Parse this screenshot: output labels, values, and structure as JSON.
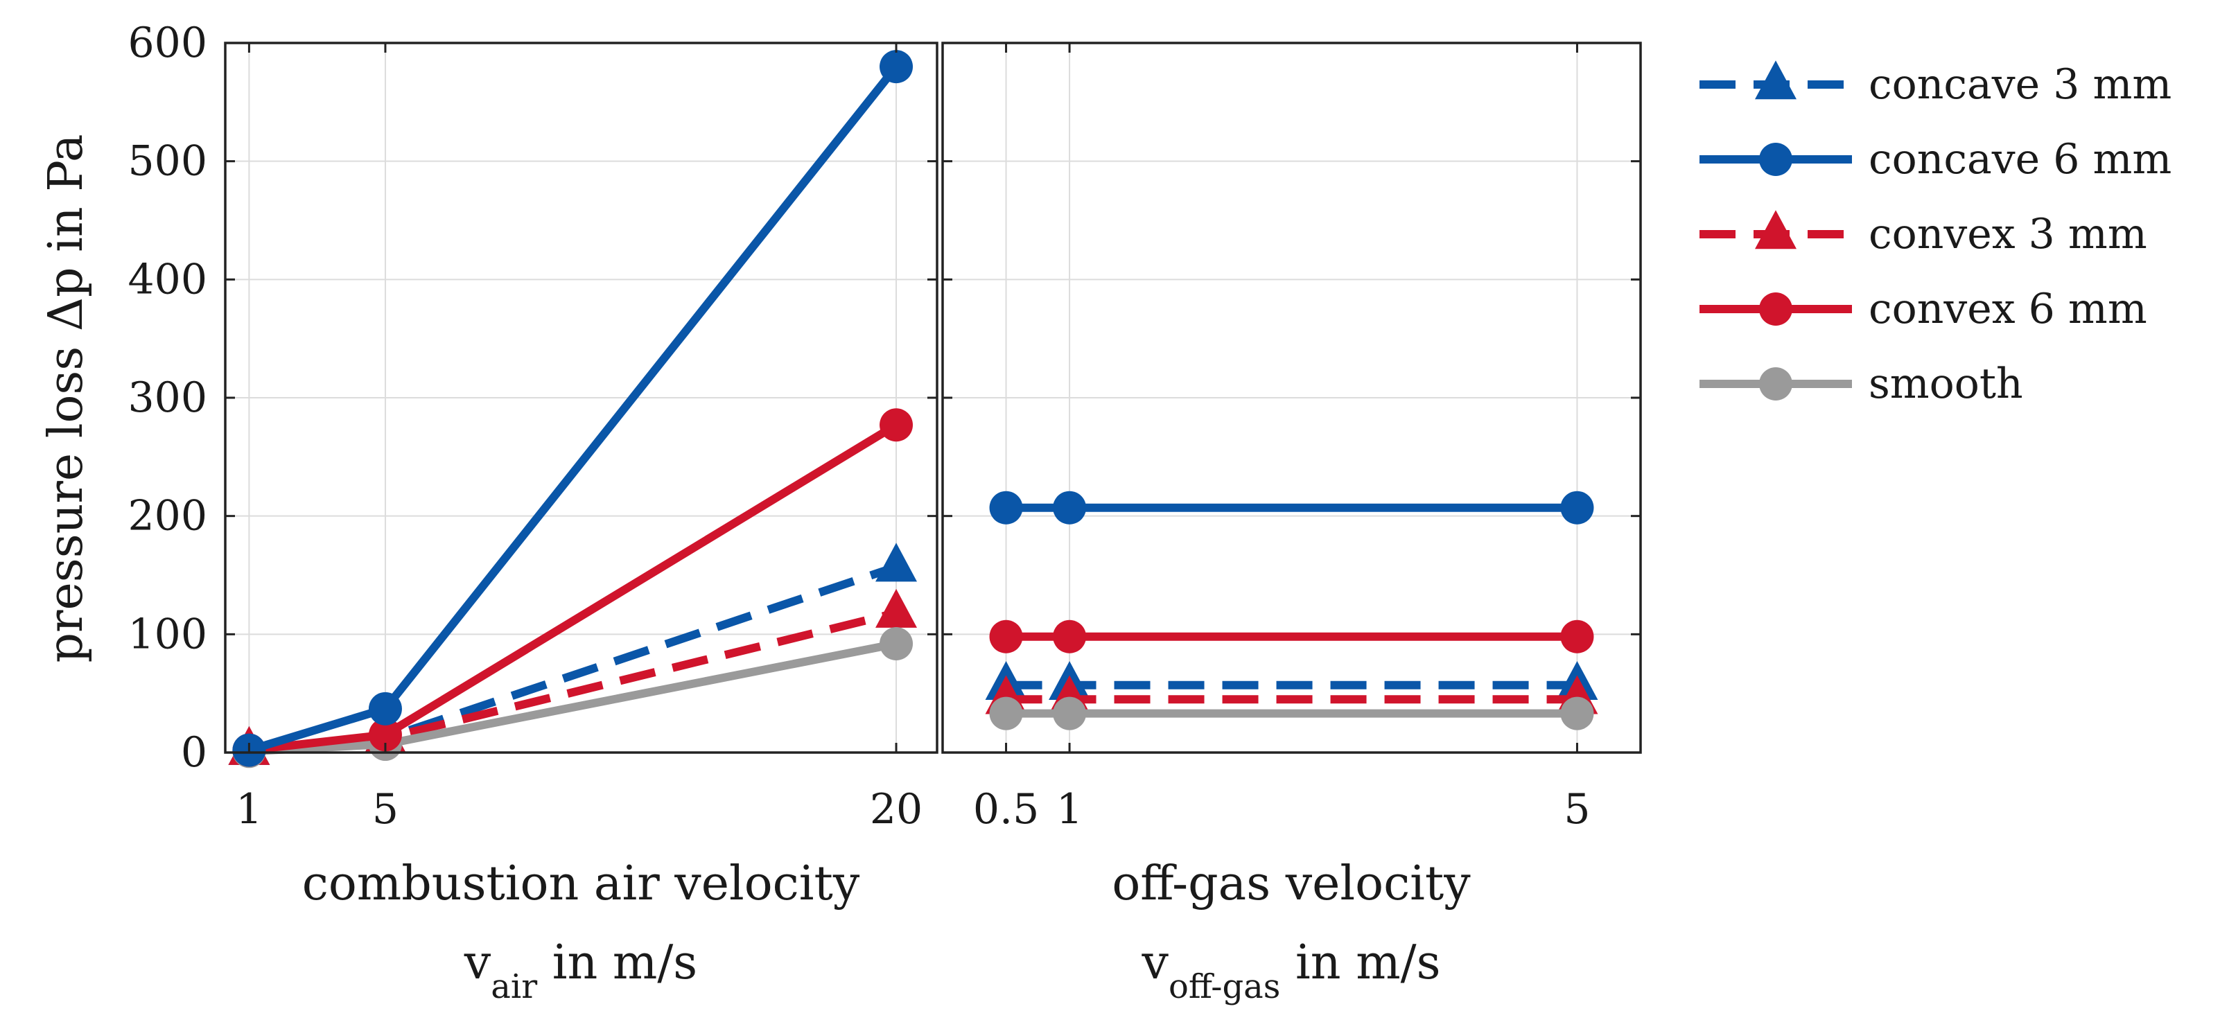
{
  "chart_data": {
    "type": "line",
    "ylabel": "pressure loss Δp in Pa",
    "ylim": [
      0,
      600
    ],
    "yticks": [
      "0",
      "100",
      "200",
      "300",
      "400",
      "500",
      "600"
    ],
    "grid": true,
    "legend_position": "right",
    "panels": [
      {
        "xlabel_line1": "combustion air velocity",
        "xlabel_var": "v",
        "xlabel_sub": "air",
        "xlabel_unit": " in m/s",
        "x": [
          1,
          5,
          20
        ],
        "xticks": [
          "1",
          "5",
          "20"
        ],
        "xlim": [
          0.3,
          21.2
        ],
        "series": [
          {
            "name": "concave 3 mm",
            "values": [
              2,
              12,
              157
            ]
          },
          {
            "name": "concave 6 mm",
            "values": [
              2,
              37,
              580
            ]
          },
          {
            "name": "convex 3 mm",
            "values": [
              2,
              12,
              118
            ]
          },
          {
            "name": "convex 6 mm",
            "values": [
              2,
              15,
              277
            ]
          },
          {
            "name": "smooth",
            "values": [
              1,
              7,
              92
            ]
          }
        ]
      },
      {
        "xlabel_line1": "off-gas velocity",
        "xlabel_var": "v",
        "xlabel_sub": "off-gas",
        "xlabel_unit": " in m/s",
        "x": [
          0.5,
          1,
          5
        ],
        "xticks": [
          "0.5",
          "1",
          "5"
        ],
        "xlim": [
          0.0,
          5.5
        ],
        "series": [
          {
            "name": "concave 3 mm",
            "values": [
              57,
              57,
              57
            ]
          },
          {
            "name": "concave 6 mm",
            "values": [
              207,
              207,
              207
            ]
          },
          {
            "name": "convex 3 mm",
            "values": [
              45,
              45,
              45
            ]
          },
          {
            "name": "convex 6 mm",
            "values": [
              98,
              98,
              98
            ]
          },
          {
            "name": "smooth",
            "values": [
              33,
              33,
              33
            ]
          }
        ]
      }
    ],
    "series_styles": [
      {
        "name": "concave 3 mm",
        "color": "#0a56a8",
        "dash": true,
        "marker": "triangle"
      },
      {
        "name": "concave 6 mm",
        "color": "#0a56a8",
        "dash": false,
        "marker": "circle"
      },
      {
        "name": "convex 3 mm",
        "color": "#d0142c",
        "dash": true,
        "marker": "triangle"
      },
      {
        "name": "convex 6 mm",
        "color": "#d0142c",
        "dash": false,
        "marker": "circle"
      },
      {
        "name": "smooth",
        "color": "#9a9a9a",
        "dash": false,
        "marker": "circle"
      }
    ],
    "draw_order": [
      0,
      2,
      4,
      3,
      1
    ]
  }
}
